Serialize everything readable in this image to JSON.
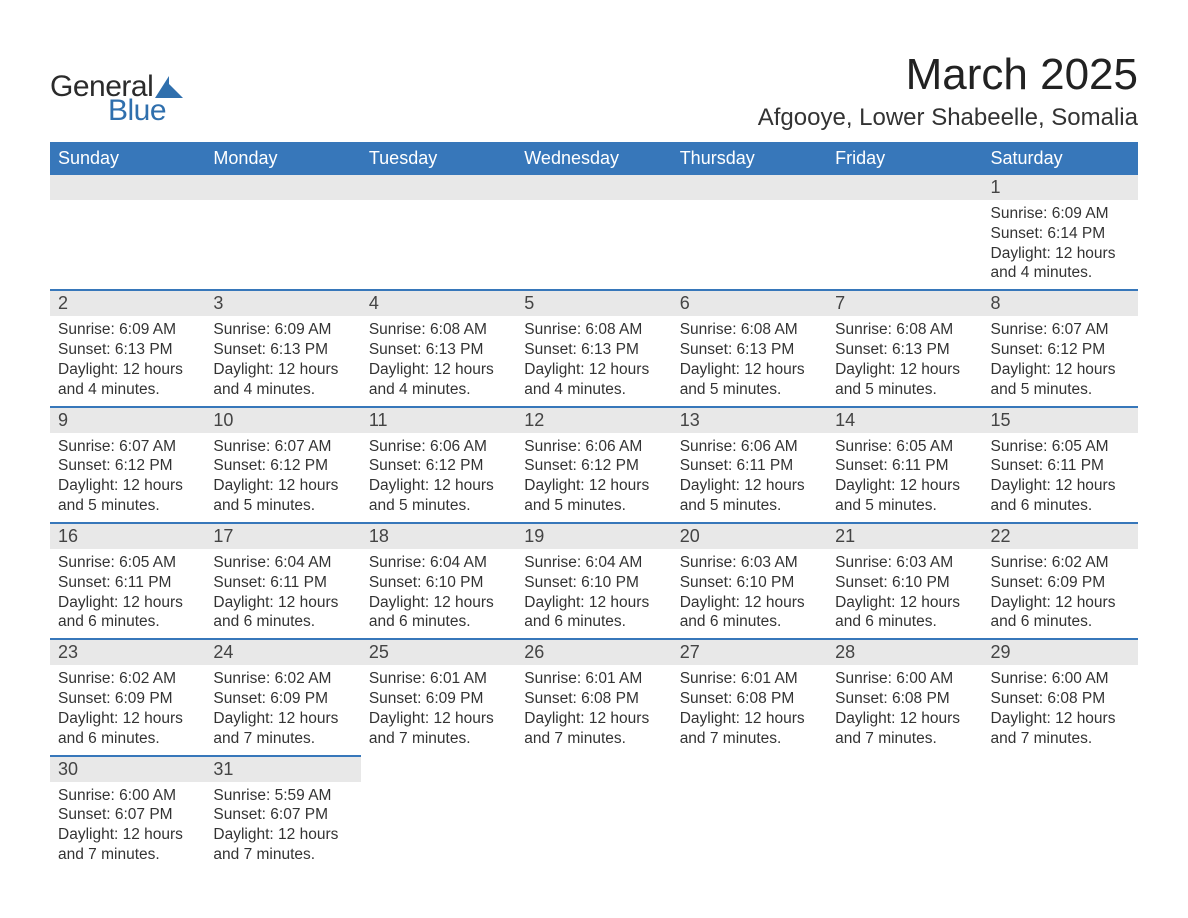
{
  "brand": {
    "text_general": "General",
    "text_blue": "Blue",
    "shape_color": "#2f6fad"
  },
  "title": "March 2025",
  "location": "Afgooye, Lower Shabeelle, Somalia",
  "colors": {
    "header_bg": "#3777ba",
    "header_text": "#ffffff",
    "daynum_bg": "#e8e8e8",
    "row_divider": "#3777ba",
    "body_text": "#333333",
    "page_bg": "#ffffff"
  },
  "weekdays": [
    "Sunday",
    "Monday",
    "Tuesday",
    "Wednesday",
    "Thursday",
    "Friday",
    "Saturday"
  ],
  "weeks": [
    [
      null,
      null,
      null,
      null,
      null,
      null,
      {
        "day": "1",
        "sunrise": "Sunrise: 6:09 AM",
        "sunset": "Sunset: 6:14 PM",
        "daylight1": "Daylight: 12 hours",
        "daylight2": "and 4 minutes."
      }
    ],
    [
      {
        "day": "2",
        "sunrise": "Sunrise: 6:09 AM",
        "sunset": "Sunset: 6:13 PM",
        "daylight1": "Daylight: 12 hours",
        "daylight2": "and 4 minutes."
      },
      {
        "day": "3",
        "sunrise": "Sunrise: 6:09 AM",
        "sunset": "Sunset: 6:13 PM",
        "daylight1": "Daylight: 12 hours",
        "daylight2": "and 4 minutes."
      },
      {
        "day": "4",
        "sunrise": "Sunrise: 6:08 AM",
        "sunset": "Sunset: 6:13 PM",
        "daylight1": "Daylight: 12 hours",
        "daylight2": "and 4 minutes."
      },
      {
        "day": "5",
        "sunrise": "Sunrise: 6:08 AM",
        "sunset": "Sunset: 6:13 PM",
        "daylight1": "Daylight: 12 hours",
        "daylight2": "and 4 minutes."
      },
      {
        "day": "6",
        "sunrise": "Sunrise: 6:08 AM",
        "sunset": "Sunset: 6:13 PM",
        "daylight1": "Daylight: 12 hours",
        "daylight2": "and 5 minutes."
      },
      {
        "day": "7",
        "sunrise": "Sunrise: 6:08 AM",
        "sunset": "Sunset: 6:13 PM",
        "daylight1": "Daylight: 12 hours",
        "daylight2": "and 5 minutes."
      },
      {
        "day": "8",
        "sunrise": "Sunrise: 6:07 AM",
        "sunset": "Sunset: 6:12 PM",
        "daylight1": "Daylight: 12 hours",
        "daylight2": "and 5 minutes."
      }
    ],
    [
      {
        "day": "9",
        "sunrise": "Sunrise: 6:07 AM",
        "sunset": "Sunset: 6:12 PM",
        "daylight1": "Daylight: 12 hours",
        "daylight2": "and 5 minutes."
      },
      {
        "day": "10",
        "sunrise": "Sunrise: 6:07 AM",
        "sunset": "Sunset: 6:12 PM",
        "daylight1": "Daylight: 12 hours",
        "daylight2": "and 5 minutes."
      },
      {
        "day": "11",
        "sunrise": "Sunrise: 6:06 AM",
        "sunset": "Sunset: 6:12 PM",
        "daylight1": "Daylight: 12 hours",
        "daylight2": "and 5 minutes."
      },
      {
        "day": "12",
        "sunrise": "Sunrise: 6:06 AM",
        "sunset": "Sunset: 6:12 PM",
        "daylight1": "Daylight: 12 hours",
        "daylight2": "and 5 minutes."
      },
      {
        "day": "13",
        "sunrise": "Sunrise: 6:06 AM",
        "sunset": "Sunset: 6:11 PM",
        "daylight1": "Daylight: 12 hours",
        "daylight2": "and 5 minutes."
      },
      {
        "day": "14",
        "sunrise": "Sunrise: 6:05 AM",
        "sunset": "Sunset: 6:11 PM",
        "daylight1": "Daylight: 12 hours",
        "daylight2": "and 5 minutes."
      },
      {
        "day": "15",
        "sunrise": "Sunrise: 6:05 AM",
        "sunset": "Sunset: 6:11 PM",
        "daylight1": "Daylight: 12 hours",
        "daylight2": "and 6 minutes."
      }
    ],
    [
      {
        "day": "16",
        "sunrise": "Sunrise: 6:05 AM",
        "sunset": "Sunset: 6:11 PM",
        "daylight1": "Daylight: 12 hours",
        "daylight2": "and 6 minutes."
      },
      {
        "day": "17",
        "sunrise": "Sunrise: 6:04 AM",
        "sunset": "Sunset: 6:11 PM",
        "daylight1": "Daylight: 12 hours",
        "daylight2": "and 6 minutes."
      },
      {
        "day": "18",
        "sunrise": "Sunrise: 6:04 AM",
        "sunset": "Sunset: 6:10 PM",
        "daylight1": "Daylight: 12 hours",
        "daylight2": "and 6 minutes."
      },
      {
        "day": "19",
        "sunrise": "Sunrise: 6:04 AM",
        "sunset": "Sunset: 6:10 PM",
        "daylight1": "Daylight: 12 hours",
        "daylight2": "and 6 minutes."
      },
      {
        "day": "20",
        "sunrise": "Sunrise: 6:03 AM",
        "sunset": "Sunset: 6:10 PM",
        "daylight1": "Daylight: 12 hours",
        "daylight2": "and 6 minutes."
      },
      {
        "day": "21",
        "sunrise": "Sunrise: 6:03 AM",
        "sunset": "Sunset: 6:10 PM",
        "daylight1": "Daylight: 12 hours",
        "daylight2": "and 6 minutes."
      },
      {
        "day": "22",
        "sunrise": "Sunrise: 6:02 AM",
        "sunset": "Sunset: 6:09 PM",
        "daylight1": "Daylight: 12 hours",
        "daylight2": "and 6 minutes."
      }
    ],
    [
      {
        "day": "23",
        "sunrise": "Sunrise: 6:02 AM",
        "sunset": "Sunset: 6:09 PM",
        "daylight1": "Daylight: 12 hours",
        "daylight2": "and 6 minutes."
      },
      {
        "day": "24",
        "sunrise": "Sunrise: 6:02 AM",
        "sunset": "Sunset: 6:09 PM",
        "daylight1": "Daylight: 12 hours",
        "daylight2": "and 7 minutes."
      },
      {
        "day": "25",
        "sunrise": "Sunrise: 6:01 AM",
        "sunset": "Sunset: 6:09 PM",
        "daylight1": "Daylight: 12 hours",
        "daylight2": "and 7 minutes."
      },
      {
        "day": "26",
        "sunrise": "Sunrise: 6:01 AM",
        "sunset": "Sunset: 6:08 PM",
        "daylight1": "Daylight: 12 hours",
        "daylight2": "and 7 minutes."
      },
      {
        "day": "27",
        "sunrise": "Sunrise: 6:01 AM",
        "sunset": "Sunset: 6:08 PM",
        "daylight1": "Daylight: 12 hours",
        "daylight2": "and 7 minutes."
      },
      {
        "day": "28",
        "sunrise": "Sunrise: 6:00 AM",
        "sunset": "Sunset: 6:08 PM",
        "daylight1": "Daylight: 12 hours",
        "daylight2": "and 7 minutes."
      },
      {
        "day": "29",
        "sunrise": "Sunrise: 6:00 AM",
        "sunset": "Sunset: 6:08 PM",
        "daylight1": "Daylight: 12 hours",
        "daylight2": "and 7 minutes."
      }
    ],
    [
      {
        "day": "30",
        "sunrise": "Sunrise: 6:00 AM",
        "sunset": "Sunset: 6:07 PM",
        "daylight1": "Daylight: 12 hours",
        "daylight2": "and 7 minutes."
      },
      {
        "day": "31",
        "sunrise": "Sunrise: 5:59 AM",
        "sunset": "Sunset: 6:07 PM",
        "daylight1": "Daylight: 12 hours",
        "daylight2": "and 7 minutes."
      },
      null,
      null,
      null,
      null,
      null
    ]
  ]
}
